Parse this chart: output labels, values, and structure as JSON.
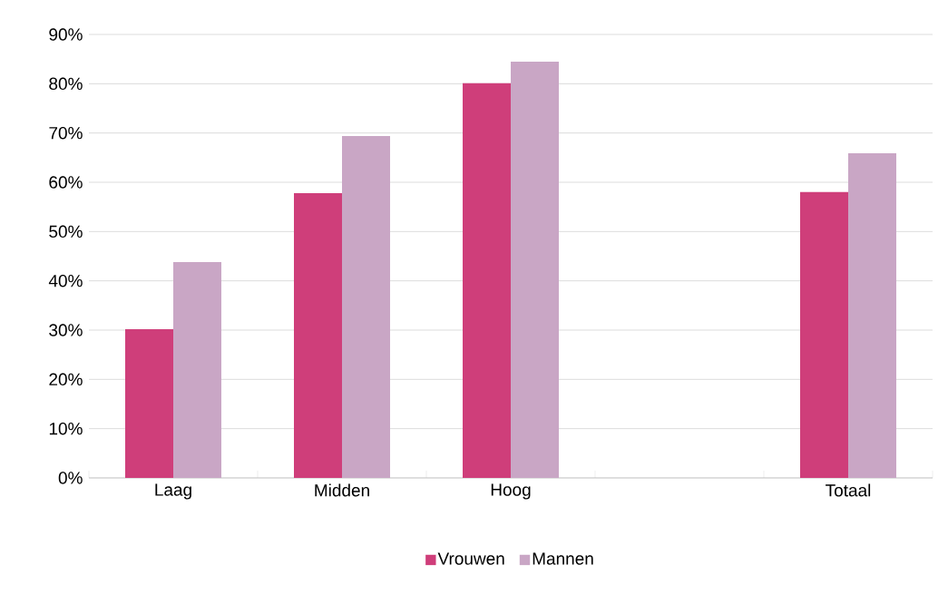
{
  "chart_data": {
    "type": "bar",
    "categories": [
      "Laag",
      "Midden",
      "Hoog",
      null,
      "Totaal"
    ],
    "series": [
      {
        "name": "Vrouwen",
        "color": "#cf3e7a",
        "values": [
          30.2,
          57.8,
          80.1,
          null,
          58.0
        ]
      },
      {
        "name": "Mannen",
        "color": "#c9a6c5",
        "values": [
          43.8,
          69.4,
          84.5,
          null,
          65.9
        ]
      }
    ],
    "ylim": [
      0,
      90
    ],
    "yticks": [
      {
        "value": 0,
        "label": "0%"
      },
      {
        "value": 10,
        "label": "10%"
      },
      {
        "value": 20,
        "label": "20%"
      },
      {
        "value": 30,
        "label": "30%"
      },
      {
        "value": 40,
        "label": "40%"
      },
      {
        "value": 50,
        "label": "50%"
      },
      {
        "value": 60,
        "label": "60%"
      },
      {
        "value": 70,
        "label": "70%"
      },
      {
        "value": 80,
        "label": "80%"
      },
      {
        "value": 90,
        "label": "90%"
      }
    ],
    "grid": "y",
    "legend": "bottom"
  }
}
